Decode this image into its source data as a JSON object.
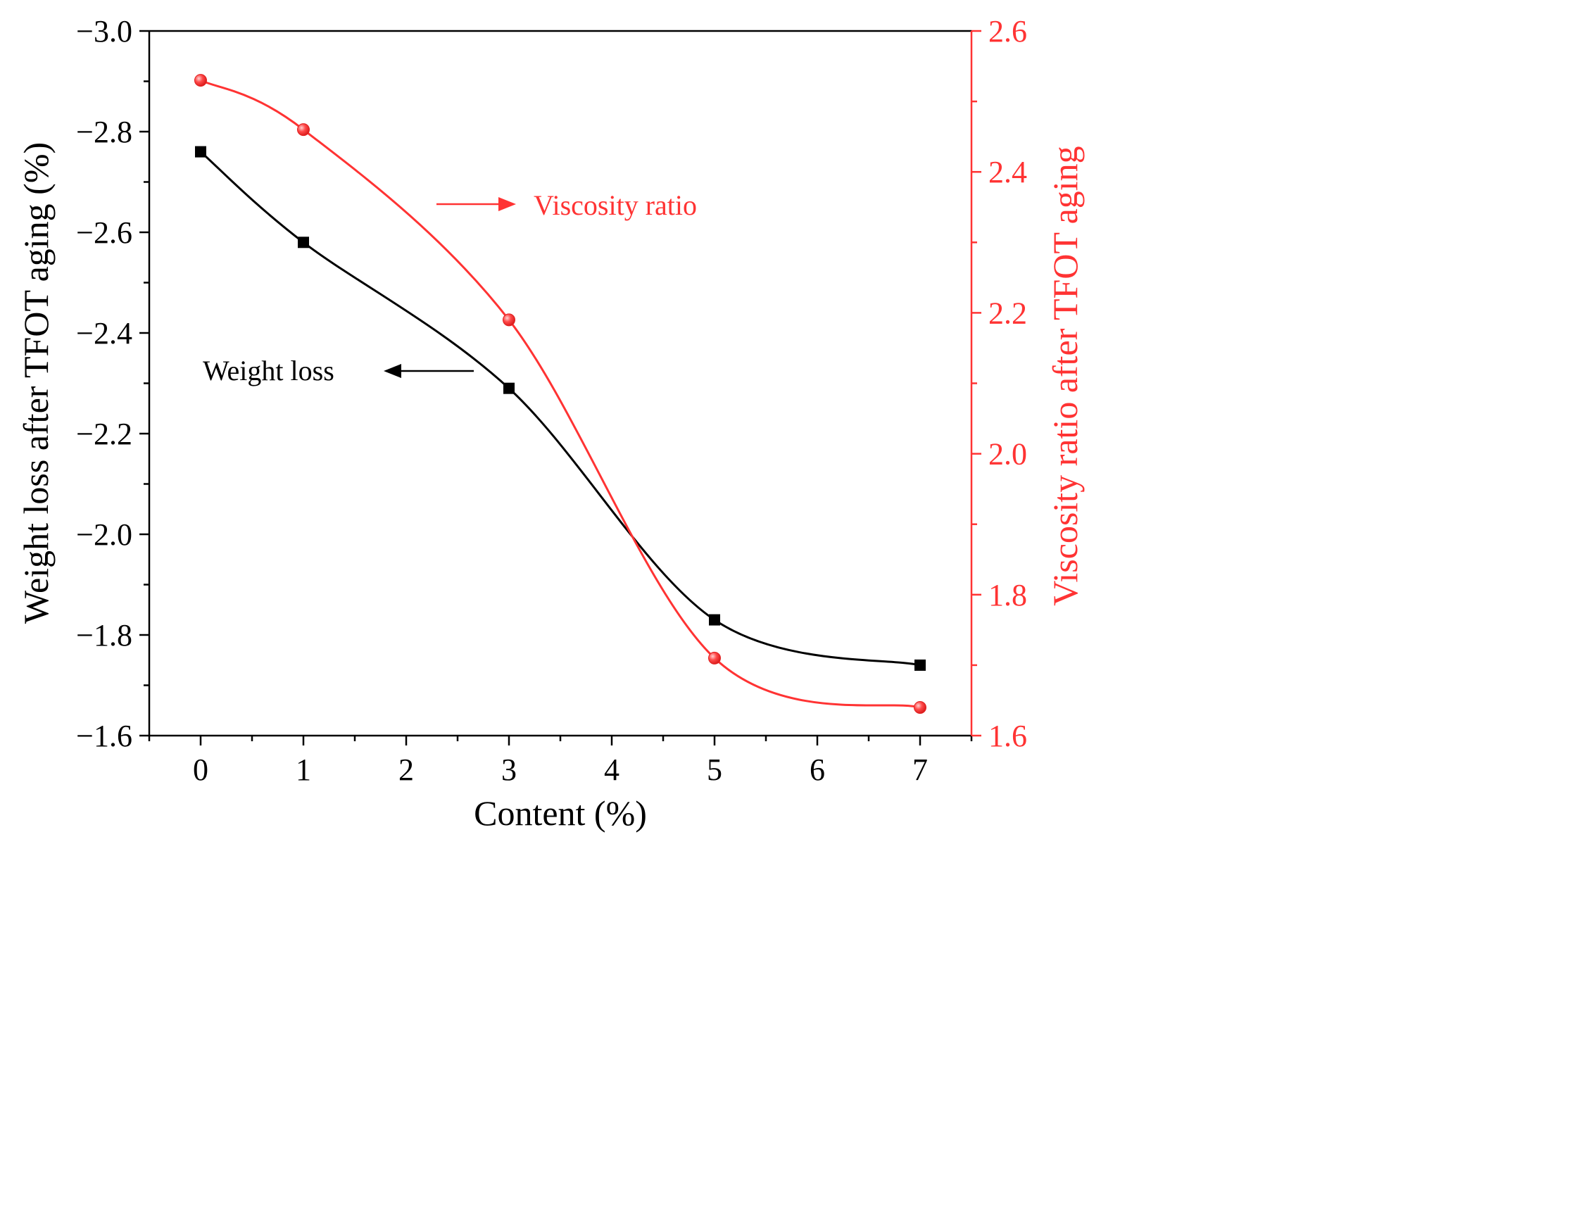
{
  "chart_data": {
    "type": "line",
    "title": "",
    "xlabel": "Content (%)",
    "ylabel_left": "Weight loss after TFOT aging (%)",
    "ylabel_right": "Viscosity ratio after TFOT aging",
    "x_ticks": [
      "0",
      "1",
      "2",
      "3",
      "4",
      "5",
      "6",
      "7"
    ],
    "xlim": [
      -0.5,
      7.5
    ],
    "y_left_ticks": [
      "−3.0",
      "−2.8",
      "−2.6",
      "−2.4",
      "−2.2",
      "−2.0",
      "−1.8",
      "−1.6"
    ],
    "y_left_lim": [
      -3.0,
      -1.6
    ],
    "y_right_ticks": [
      "1.6",
      "1.8",
      "2.0",
      "2.2",
      "2.4",
      "2.6"
    ],
    "y_right_lim": [
      1.6,
      2.6
    ],
    "series": [
      {
        "name": "Weight loss",
        "axis": "left",
        "color": "#000000",
        "marker": "square",
        "x": [
          0,
          1,
          3,
          5,
          7
        ],
        "values": [
          -2.76,
          -2.58,
          -2.29,
          -1.83,
          -1.74
        ]
      },
      {
        "name": "Viscosity ratio",
        "axis": "right",
        "color": "#ff3333",
        "marker": "circle",
        "x": [
          0,
          1,
          3,
          5,
          7
        ],
        "values": [
          2.53,
          2.46,
          2.19,
          1.71,
          1.64
        ]
      }
    ],
    "annotations": [
      {
        "text": "Weight loss",
        "arrow": "left",
        "color": "#000000"
      },
      {
        "text": "Viscosity ratio",
        "arrow": "right",
        "color": "#ff3333"
      }
    ]
  }
}
